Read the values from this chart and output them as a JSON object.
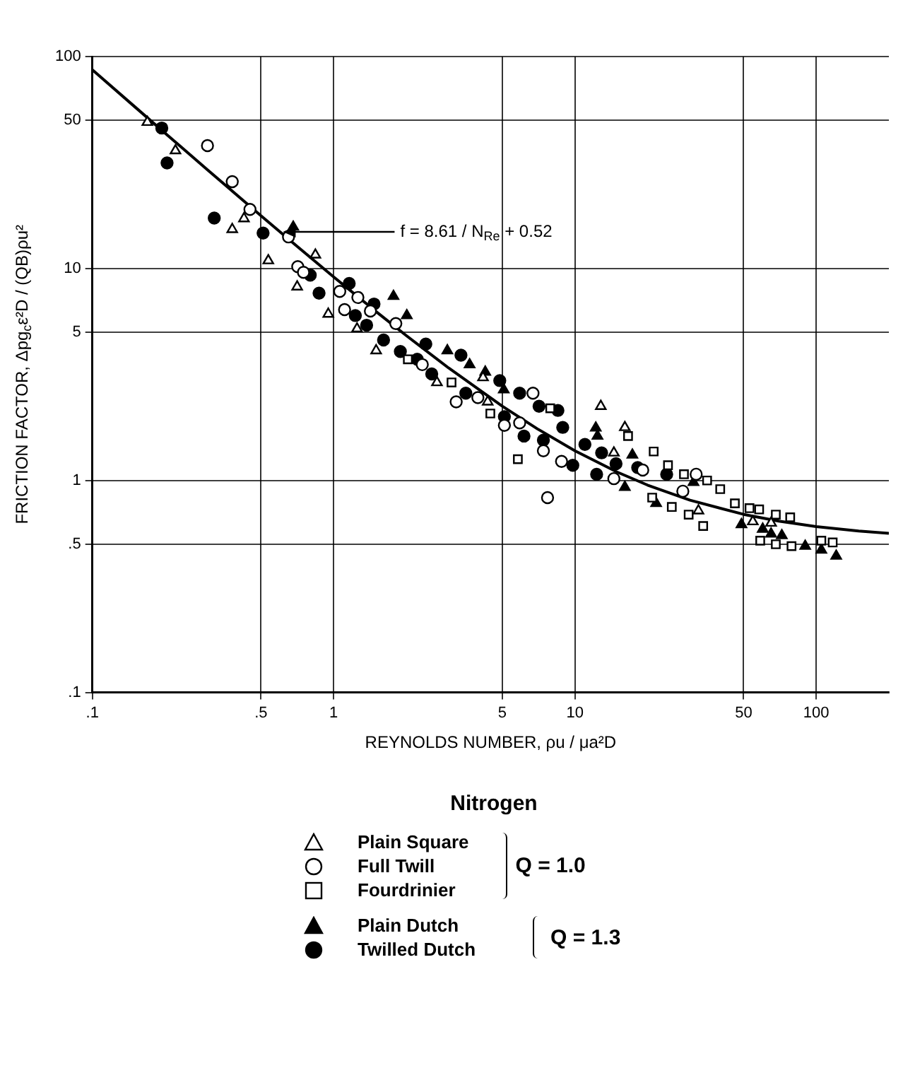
{
  "chart_data": {
    "type": "scatter",
    "title": "Nitrogen",
    "xlabel": "REYNOLDS NUMBER, ρu / μa²D",
    "ylabel": "FRICTION FACTOR, Δpg$_{c}$ε²D / (QB)ρu²",
    "annotations": [
      {
        "text": "f = 8.61 / N$_{Re}$ + 0.52",
        "x": 0.6,
        "y": 14.9
      },
      "Q = 1.0",
      "Q = 1.3"
    ],
    "log": "xy",
    "grid": true,
    "legend": "bottom",
    "xlim": [
      0.1,
      200
    ],
    "ylim": [
      0.1,
      100
    ],
    "xticks": [
      {
        "value": 0.1,
        "label": ".1"
      },
      {
        "value": 0.5,
        "label": ".5"
      },
      1,
      5,
      10,
      50,
      100
    ],
    "yticks": [
      {
        "value": 0.1,
        "label": ".1"
      },
      {
        "value": 0.5,
        "label": ".5"
      },
      1,
      5,
      10,
      50,
      100
    ],
    "series": [
      {
        "name": "Plain Square",
        "color": "#000000",
        "marker": "triangle",
        "x": [
          0.169,
          0.221,
          0.38,
          0.425,
          0.536,
          0.706,
          0.84,
          0.95,
          1.25,
          1.5,
          2.68,
          4.16,
          4.35,
          12.8,
          14.5,
          16.1,
          32.5,
          54.6,
          65
        ],
        "values": [
          49,
          36,
          15.3,
          17.2,
          10.9,
          8.2,
          11.6,
          6.1,
          5.2,
          4.1,
          2.9,
          3.06,
          2.35,
          2.24,
          1.35,
          1.78,
          0.72,
          0.64,
          0.63
        ]
      },
      {
        "name": "Full Twill",
        "color": "#000000",
        "marker": "circle",
        "x": [
          0.3,
          0.38,
          0.45,
          0.65,
          0.71,
          0.75,
          1.06,
          1.11,
          1.26,
          1.42,
          1.81,
          2.33,
          3.22,
          3.96,
          5.1,
          5.9,
          6.7,
          7.4,
          7.7,
          8.8,
          14.2,
          14.5,
          19.1,
          28,
          31.8
        ],
        "values": [
          38,
          25.7,
          19,
          14.1,
          10.2,
          9.6,
          7.8,
          6.4,
          7.3,
          6.3,
          5.5,
          3.52,
          2.35,
          2.46,
          1.82,
          1.87,
          2.58,
          1.38,
          0.83,
          1.23,
          null,
          1.02,
          1.12,
          0.89,
          1.07
        ]
      },
      {
        "name": "Fourdrinier",
        "color": "#000000",
        "marker": "square",
        "x": [
          2.03,
          3.08,
          4.46,
          5.8,
          7.9,
          16.6,
          20.9,
          21.2,
          24.3,
          25.2,
          28.3,
          29.6,
          34,
          35.3,
          40,
          46,
          52.9,
          58,
          58.6,
          68,
          68,
          78,
          79,
          105,
          117
        ],
        "values": [
          3.73,
          2.9,
          2.07,
          1.26,
          2.19,
          1.62,
          0.83,
          1.37,
          1.18,
          0.75,
          1.07,
          0.69,
          0.61,
          1.0,
          0.91,
          0.78,
          0.74,
          0.73,
          0.52,
          0.69,
          0.5,
          0.67,
          0.49,
          0.52,
          0.51
        ]
      },
      {
        "name": "Plain Dutch",
        "color": "#000000",
        "marker": "triangle",
        "x": [
          0.68,
          1.77,
          2.01,
          2.96,
          3.66,
          4.25,
          5.07,
          12.2,
          12.4,
          16.1,
          17.3,
          21.7,
          31,
          41,
          49,
          60,
          65,
          72,
          90,
          105,
          121
        ],
        "values": [
          15.7,
          7.4,
          6.0,
          4.1,
          3.52,
          3.25,
          2.68,
          1.77,
          1.62,
          0.93,
          1.32,
          0.78,
          0.98,
          null,
          0.62,
          0.59,
          0.56,
          0.55,
          0.49,
          0.47,
          0.44
        ]
      },
      {
        "name": "Twilled Dutch",
        "color": "#000000",
        "marker": "circle",
        "x": [
          0.194,
          0.204,
          0.32,
          0.51,
          0.8,
          0.87,
          1.16,
          1.23,
          1.37,
          1.47,
          1.61,
          1.89,
          2.22,
          2.41,
          2.55,
          3.37,
          3.53,
          4.88,
          5.1,
          5.9,
          6.15,
          7.1,
          7.4,
          8.5,
          8.9,
          9.8,
          11,
          12.3,
          12.9,
          14.8,
          18.2,
          24
        ],
        "values": [
          46,
          31.5,
          17.3,
          14.7,
          9.3,
          7.65,
          8.5,
          6.0,
          5.4,
          6.8,
          4.6,
          4.06,
          3.73,
          4.4,
          3.18,
          3.9,
          2.58,
          2.96,
          2.0,
          2.58,
          1.62,
          2.24,
          1.55,
          2.14,
          1.78,
          1.18,
          1.48,
          1.07,
          1.35,
          1.2,
          1.15,
          1.07
        ]
      },
      {
        "type": "line",
        "color": "#000000",
        "marker": "none",
        "line_style": "solid",
        "x": [
          0.1,
          0.15,
          0.2,
          0.3,
          0.5,
          0.7,
          1,
          1.5,
          2,
          3,
          5,
          7,
          10,
          15,
          20,
          30,
          50,
          70,
          100,
          150,
          200
        ],
        "values": [
          86.62,
          57.92,
          43.57,
          29.22,
          17.74,
          12.82,
          9.13,
          6.26,
          4.825,
          3.39,
          2.242,
          1.75,
          1.381,
          1.094,
          0.951,
          0.807,
          0.692,
          0.643,
          0.606,
          0.577,
          0.563
        ]
      }
    ]
  }
}
